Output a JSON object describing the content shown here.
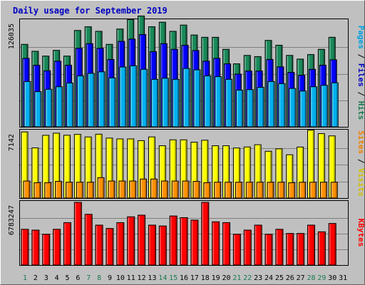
{
  "chart_data": {
    "type": "bar",
    "title": "Daily usage for September 2019",
    "categories": [
      "1",
      "2",
      "3",
      "4",
      "5",
      "6",
      "7",
      "8",
      "9",
      "10",
      "11",
      "12",
      "13",
      "14",
      "15",
      "16",
      "17",
      "18",
      "19",
      "20",
      "21",
      "22",
      "23",
      "24",
      "25",
      "26",
      "27",
      "28",
      "29",
      "30",
      "31"
    ],
    "weekend_days": [
      1,
      7,
      8,
      14,
      15,
      21,
      22,
      28,
      29
    ],
    "panels": [
      {
        "id": "requests",
        "max_label": "126035",
        "ymax": 126035,
        "side_label": [
          {
            "text": "Pages",
            "color": "#00a0e0"
          },
          {
            "text": " / ",
            "color": "#000000"
          },
          {
            "text": "Files",
            "color": "#0000c0"
          },
          {
            "text": " / ",
            "color": "#000000"
          },
          {
            "text": "Hits",
            "color": "#1a7a50"
          }
        ],
        "series": [
          {
            "name": "Hits",
            "color": "#1a8a5a",
            "values": [
              97900,
              89700,
              84000,
              90800,
              84000,
              114400,
              118800,
              113400,
              97900,
              116100,
              127500,
              131600,
              118800,
              124200,
              113400,
              120800,
              109000,
              106300,
              106300,
              92000,
              74800,
              84800,
              83400,
              102600,
              96900,
              84800,
              80400,
              85800,
              92000,
              106300,
              null
            ]
          },
          {
            "name": "Files",
            "color": "#0000ff",
            "values": [
              81300,
              73200,
              66600,
              78000,
              73200,
              93300,
              98800,
              93300,
              80000,
              101500,
              104200,
              109600,
              89300,
              98800,
              92000,
              96900,
              90600,
              78000,
              81300,
              74800,
              62600,
              66300,
              66300,
              80000,
              71200,
              64700,
              61300,
              68300,
              73200,
              79600,
              null
            ]
          },
          {
            "name": "Pages",
            "color": "#00b0f0",
            "values": [
              53800,
              41800,
              44600,
              47600,
              52000,
              60500,
              63500,
              65300,
              58100,
              71000,
              72500,
              68300,
              56400,
              57700,
              56400,
              69300,
              67700,
              60500,
              59600,
              56400,
              43600,
              44200,
              46900,
              53800,
              51300,
              45600,
              42500,
              47600,
              49300,
              52300,
              null
            ]
          }
        ]
      },
      {
        "id": "visits",
        "max_label": "7142",
        "ymax": 7142,
        "side_label": [
          {
            "text": "Sites",
            "color": "#f08000"
          },
          {
            "text": " / ",
            "color": "#000000"
          },
          {
            "text": "Visits",
            "color": "#d0c000"
          }
        ],
        "series": [
          {
            "name": "Visits",
            "color": "#ffff00",
            "values": [
              7050,
              5350,
              6690,
              6920,
              6700,
              6790,
              6520,
              6810,
              6400,
              6310,
              6310,
              6120,
              6520,
              5580,
              6210,
              6210,
              5960,
              6170,
              5580,
              5580,
              5340,
              5450,
              5690,
              4990,
              5250,
              4620,
              5440,
              7240,
              6870,
              6630,
              null
            ]
          },
          {
            "name": "Sites",
            "color": "#ff9000",
            "values": [
              1820,
              1640,
              1640,
              1780,
              1690,
              1690,
              1690,
              2180,
              1820,
              1820,
              1820,
              2030,
              2030,
              1820,
              1820,
              1820,
              1780,
              1640,
              1690,
              1690,
              1690,
              1690,
              1690,
              1690,
              1690,
              1640,
              1690,
              1690,
              1690,
              1690,
              null
            ]
          }
        ]
      },
      {
        "id": "kbytes",
        "max_label": "6783247",
        "ymax": 6783247,
        "side_label": [
          {
            "text": "KBytes",
            "color": "#ff0000"
          }
        ],
        "series": [
          {
            "name": "KBytes",
            "color": "#ff0000",
            "values": [
              3870000,
              3780000,
              3330000,
              3870000,
              4590000,
              6780000,
              5490000,
              4320000,
              3960000,
              4590000,
              5220000,
              5400000,
              4320000,
              4230000,
              5310000,
              5130000,
              4860000,
              6780000,
              4680000,
              4590000,
              3330000,
              3780000,
              4320000,
              3330000,
              3870000,
              3420000,
              3420000,
              4320000,
              3600000,
              4500000,
              null
            ]
          }
        ]
      }
    ]
  }
}
